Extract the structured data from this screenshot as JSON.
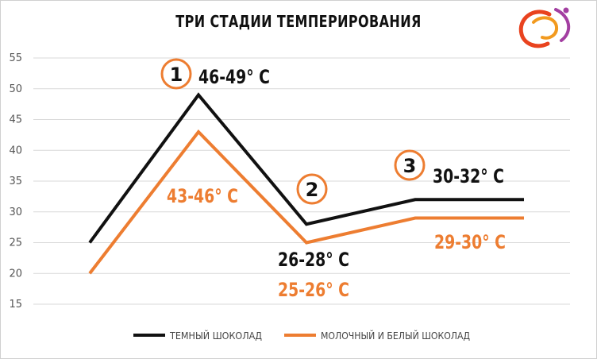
{
  "chart_data": {
    "type": "line",
    "title": "ТРИ СТАДИИ ТЕМПЕРИРОВАНИЯ",
    "xlabel": "",
    "ylabel": "",
    "ylim": [
      15,
      55
    ],
    "yticks": [
      15,
      20,
      25,
      30,
      35,
      40,
      45,
      50,
      55
    ],
    "grid": true,
    "legend_position": "bottom",
    "x": [
      1,
      2,
      3,
      4,
      5
    ],
    "series": [
      {
        "name": "ТЕМНЫЙ ШОКОЛАД",
        "color": "#111111",
        "values": [
          25,
          49,
          28,
          32,
          32
        ]
      },
      {
        "name": "МОЛОЧНЫЙ И БЕЛЫЙ ШОКОЛАД",
        "color": "#ED7D31",
        "values": [
          20,
          43,
          25,
          29,
          29
        ]
      }
    ],
    "annotations": [
      {
        "text": "46-49° C",
        "color": "#111111"
      },
      {
        "text": "43-46° C",
        "color": "#ED7D31"
      },
      {
        "text": "26-28° C",
        "color": "#111111"
      },
      {
        "text": "25-26° C",
        "color": "#ED7D31"
      },
      {
        "text": "30-32° C",
        "color": "#111111"
      },
      {
        "text": "29-30° C",
        "color": "#ED7D31"
      }
    ],
    "stage_markers": [
      "1",
      "2",
      "3"
    ]
  }
}
